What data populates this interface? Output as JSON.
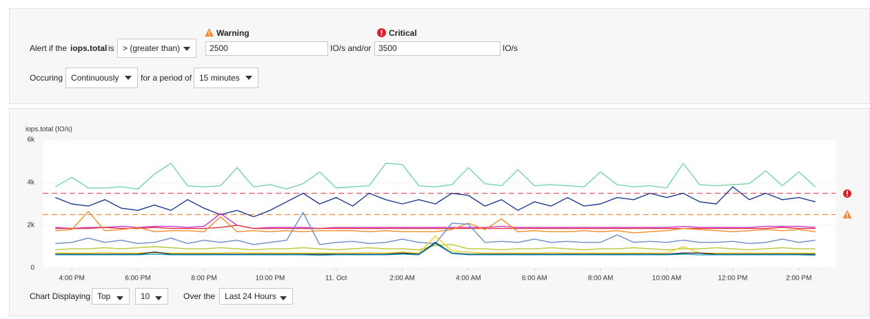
{
  "alert": {
    "prefix": "Alert if the",
    "metric": "iops.total",
    "is": "is",
    "operator": "> (greater than)",
    "warning": {
      "label": "Warning",
      "value": 2500
    },
    "and_or": "IO/s and/or",
    "critical": {
      "label": "Critical",
      "value": 3500
    },
    "unit": "IO/s",
    "occurring": "Occuring",
    "mode": "Continuously",
    "period_label": "for a period of",
    "period": "15 minutes"
  },
  "chart_data": {
    "type": "line",
    "y_label": "iops.total (IO/s)",
    "warning_color": "#f0883a",
    "critical_color": "#e8505b",
    "grid": true,
    "xlim": [
      15.12,
      39.11
    ],
    "xticks": [
      {
        "value": 16,
        "label": "4:00 PM"
      },
      {
        "value": 18,
        "label": "6:00 PM"
      },
      {
        "value": 20,
        "label": "8:00 PM"
      },
      {
        "value": 22,
        "label": "10:00 PM"
      },
      {
        "value": 24,
        "label": "11. Oct"
      },
      {
        "value": 26,
        "label": "2:00 AM"
      },
      {
        "value": 28,
        "label": "4:00 AM"
      },
      {
        "value": 30,
        "label": "6:00 AM"
      },
      {
        "value": 32,
        "label": "8:00 AM"
      },
      {
        "value": 34,
        "label": "10:00 AM"
      },
      {
        "value": 36,
        "label": "12:00 PM"
      },
      {
        "value": 38,
        "label": "2:00 PM"
      }
    ],
    "ylim": [
      0,
      6000
    ],
    "yticks": [
      0,
      {
        "value": 2000,
        "label": "2k"
      },
      {
        "value": 4000,
        "label": "4k"
      },
      {
        "value": 6000,
        "label": "6k"
      }
    ],
    "x": [
      15.5,
      16,
      16.5,
      17,
      17.5,
      18,
      18.5,
      19,
      19.5,
      20,
      20.5,
      21,
      21.5,
      22,
      22.5,
      23,
      23.5,
      24,
      24.5,
      25,
      25.5,
      26,
      26.5,
      27,
      27.5,
      28,
      28.5,
      29,
      29.5,
      30,
      30.5,
      31,
      31.5,
      32,
      32.5,
      33,
      33.5,
      34,
      34.5,
      35,
      35.5,
      36,
      36.5,
      37,
      37.5,
      38,
      38.5
    ],
    "series": [
      {
        "color": "#76d1b4",
        "values": [
          3800,
          4250,
          3750,
          3750,
          3800,
          3700,
          4400,
          4900,
          3850,
          3800,
          3850,
          4700,
          3800,
          3900,
          3700,
          3950,
          4500,
          3750,
          3800,
          3850,
          4900,
          4850,
          3850,
          3800,
          3900,
          4700,
          3950,
          3850,
          4600,
          3850,
          3900,
          3850,
          3800,
          4500,
          3900,
          3800,
          3850,
          3750,
          4900,
          3900,
          3850,
          3900,
          3950,
          4550,
          3850,
          4500,
          3800
        ]
      },
      {
        "color": "#1f3a93",
        "values": [
          3300,
          3000,
          2900,
          3200,
          2800,
          2700,
          2950,
          2700,
          3200,
          2800,
          2500,
          2700,
          2400,
          2700,
          3100,
          3500,
          3000,
          3300,
          2900,
          3500,
          3200,
          3000,
          3200,
          3000,
          3500,
          3400,
          2900,
          3200,
          2700,
          3100,
          2900,
          3300,
          2900,
          3000,
          3300,
          3200,
          3500,
          3300,
          3500,
          3100,
          3000,
          3800,
          3200,
          3500,
          3200,
          3300,
          3100
        ]
      },
      {
        "color": "#cc33cc",
        "values": [
          1900,
          1850,
          1900,
          1900,
          1950,
          1900,
          1950,
          1950,
          1900,
          1950,
          2550,
          2000,
          1850,
          1900,
          1900,
          1900,
          1850,
          1900,
          1900,
          1900,
          1900,
          1900,
          1900,
          1900,
          1900,
          1900,
          1900,
          1950,
          1900,
          1900,
          1900,
          1900,
          1900,
          1900,
          1900,
          1900,
          1900,
          1900,
          1950,
          1900,
          1900,
          1900,
          1900,
          1950,
          1950,
          1950,
          1900
        ]
      },
      {
        "color": "#e0303a",
        "values": [
          1850,
          1850,
          1850,
          1900,
          1850,
          1850,
          1900,
          1850,
          1850,
          1850,
          1900,
          2000,
          1850,
          1850,
          1850,
          1850,
          1850,
          1850,
          1850,
          1850,
          1850,
          1850,
          1850,
          1850,
          1850,
          1850,
          1850,
          1850,
          1850,
          1850,
          1850,
          1850,
          1850,
          1850,
          1850,
          1850,
          1850,
          1850,
          1850,
          1850,
          1850,
          1850,
          1850,
          1850,
          1900,
          1850,
          1850
        ]
      },
      {
        "color": "#f28c28",
        "values": [
          1750,
          1800,
          2650,
          1750,
          1800,
          1900,
          1700,
          1750,
          1750,
          1700,
          2400,
          1700,
          1750,
          1700,
          1750,
          1700,
          1750,
          1750,
          1750,
          1700,
          1750,
          1700,
          1700,
          1700,
          1800,
          2100,
          1800,
          2300,
          1700,
          1750,
          1700,
          1700,
          1750,
          1700,
          1750,
          1650,
          1700,
          1750,
          1850,
          1800,
          1750,
          1700,
          1750,
          1800,
          1750,
          1800,
          1700
        ]
      },
      {
        "color": "#6a8cc7",
        "values": [
          1150,
          1200,
          1400,
          1200,
          1300,
          1150,
          1200,
          1400,
          1150,
          1300,
          1200,
          1300,
          1100,
          1200,
          1300,
          2600,
          1100,
          1200,
          1250,
          1150,
          1200,
          1350,
          1200,
          1150,
          2100,
          2050,
          1200,
          1250,
          1200,
          1350,
          1200,
          1250,
          1200,
          1200,
          1550,
          1200,
          1250,
          1200,
          1300,
          1200,
          1200,
          1250,
          1150,
          1200,
          1350,
          1200,
          1300
        ]
      },
      {
        "color": "#b5c832",
        "values": [
          850,
          900,
          900,
          950,
          900,
          950,
          1000,
          950,
          900,
          900,
          950,
          900,
          850,
          900,
          900,
          950,
          900,
          850,
          900,
          950,
          900,
          900,
          850,
          1050,
          1100,
          900,
          900,
          850,
          900,
          900,
          950,
          900,
          850,
          900,
          900,
          950,
          900,
          850,
          900,
          900,
          950,
          900,
          850,
          900,
          950,
          900,
          900
        ]
      },
      {
        "color": "#e8d020",
        "values": [
          700,
          700,
          700,
          720,
          700,
          700,
          720,
          700,
          700,
          700,
          700,
          720,
          700,
          700,
          700,
          700,
          700,
          700,
          700,
          720,
          700,
          750,
          700,
          1500,
          800,
          750,
          700,
          700,
          700,
          700,
          720,
          700,
          700,
          700,
          700,
          700,
          700,
          700,
          1000,
          700,
          700,
          700,
          700,
          700,
          700,
          700,
          700
        ]
      },
      {
        "color": "#222222",
        "values": [
          650,
          650,
          650,
          650,
          650,
          650,
          750,
          650,
          650,
          650,
          650,
          650,
          650,
          650,
          650,
          650,
          650,
          650,
          650,
          650,
          650,
          700,
          650,
          1200,
          700,
          650,
          650,
          650,
          650,
          650,
          650,
          650,
          650,
          650,
          650,
          650,
          650,
          650,
          700,
          700,
          650,
          650,
          650,
          650,
          650,
          650,
          650
        ]
      },
      {
        "color": "#1a9bbd",
        "values": [
          620,
          620,
          620,
          620,
          620,
          620,
          650,
          620,
          620,
          620,
          620,
          620,
          620,
          620,
          620,
          620,
          600,
          620,
          620,
          620,
          620,
          650,
          620,
          1150,
          680,
          620,
          620,
          620,
          620,
          620,
          620,
          620,
          620,
          620,
          620,
          620,
          620,
          620,
          650,
          620,
          620,
          620,
          620,
          620,
          620,
          620,
          600
        ]
      }
    ]
  },
  "footer": {
    "displaying": "Chart Displaying",
    "rank": "Top",
    "count": "10",
    "over": "Over the",
    "range": "Last 24 Hours"
  }
}
